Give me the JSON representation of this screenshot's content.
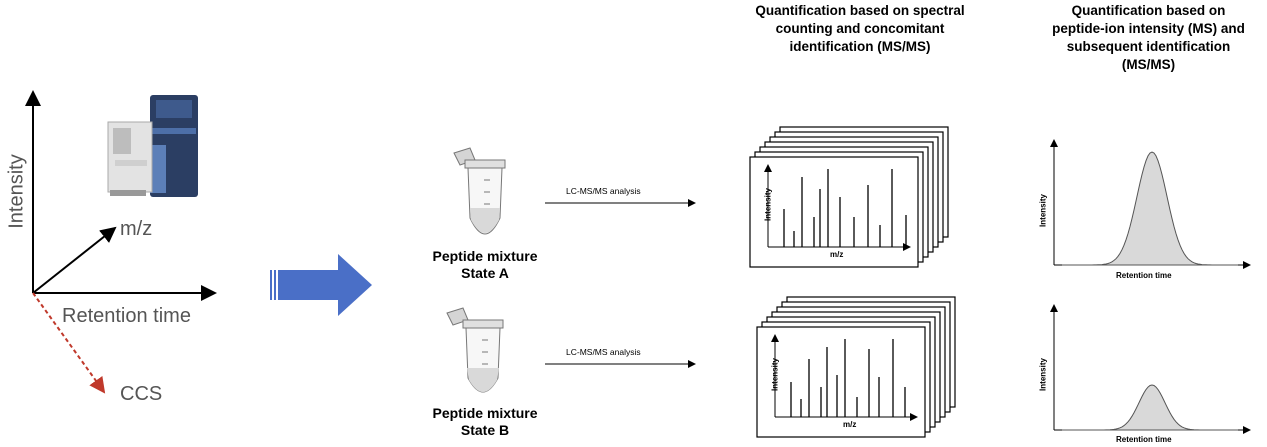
{
  "left_axes": {
    "y_label": "Intensity",
    "x_label": "Retention time",
    "z_label": "m/z",
    "diag_label": "CCS"
  },
  "samples": [
    {
      "line1": "Peptide mixture",
      "line2": "State A",
      "arrow_label": "LC-MS/MS analysis"
    },
    {
      "line1": "Peptide mixture",
      "line2": "State B",
      "arrow_label": "LC-MS/MS analysis"
    }
  ],
  "headings": {
    "spectral_counting": "Quantification based on spectral counting and concomitant identification (MS/MS)",
    "ion_intensity": "Quantification based on peptide-ion intensity (MS) and subsequent identification (MS/MS)"
  },
  "spectrum_panel": {
    "y_label": "Intensity",
    "x_label": "m/z"
  },
  "chromatogram_panel": {
    "y_label": "Intensity",
    "x_label": "Retention time"
  },
  "colors": {
    "arrow_blue": "#4a6fc7",
    "dash_red": "#c0392b",
    "peak_fill": "#d9d9d9"
  }
}
